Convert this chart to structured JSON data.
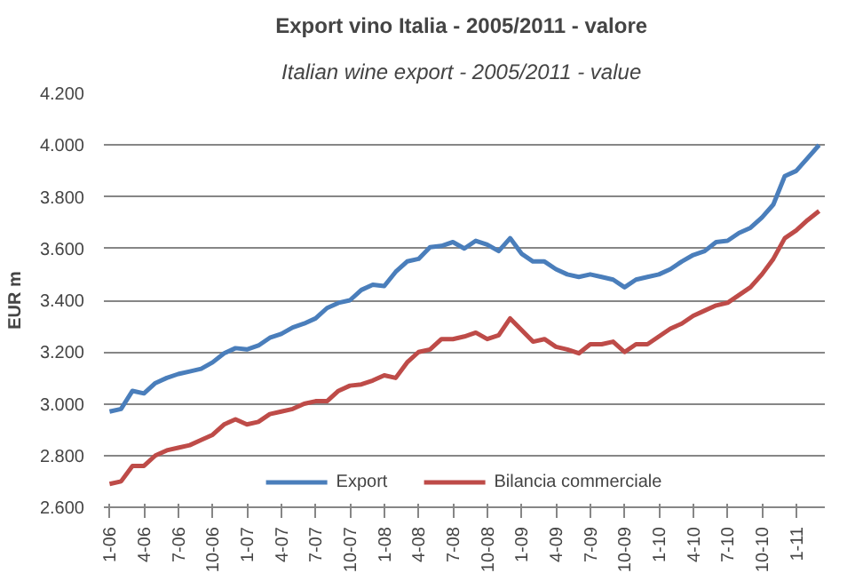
{
  "chart_data": {
    "type": "line",
    "title": "Export vino Italia - 2005/2011  - valore",
    "subtitle": "Italian wine export - 2005/2011  - value",
    "ylabel": "EUR m",
    "categories": [
      "1-06",
      null,
      null,
      "4-06",
      null,
      null,
      "7-06",
      null,
      null,
      "10-06",
      null,
      null,
      "1-07",
      null,
      null,
      "4-07",
      null,
      null,
      "7-07",
      null,
      null,
      "10-07",
      null,
      null,
      "1-08",
      null,
      null,
      "4-08",
      null,
      null,
      "7-08",
      null,
      null,
      "10-08",
      null,
      null,
      "1-09",
      null,
      null,
      "4-09",
      null,
      null,
      "7-09",
      null,
      null,
      "10-09",
      null,
      null,
      "1-10",
      null,
      null,
      "4-10",
      null,
      null,
      "7-10",
      null,
      null,
      "10-10",
      null,
      null,
      "1-11",
      null,
      null
    ],
    "series": [
      {
        "name": "Export",
        "color": "#4a7ebb",
        "values": [
          2970,
          2980,
          3050,
          3040,
          3080,
          3100,
          3115,
          3125,
          3135,
          3160,
          3195,
          3215,
          3210,
          3225,
          3255,
          3270,
          3295,
          3310,
          3330,
          3370,
          3390,
          3400,
          3440,
          3460,
          3455,
          3510,
          3550,
          3560,
          3605,
          3610,
          3625,
          3600,
          3630,
          3615,
          3590,
          3640,
          3580,
          3550,
          3550,
          3520,
          3500,
          3490,
          3500,
          3490,
          3480,
          3450,
          3480,
          3490,
          3500,
          3520,
          3550,
          3575,
          3590,
          3625,
          3630,
          3660,
          3680,
          3720,
          3770,
          3880,
          3900,
          3950,
          4000
        ]
      },
      {
        "name": "Bilancia commerciale",
        "color": "#be4b48",
        "values": [
          2690,
          2700,
          2760,
          2760,
          2800,
          2820,
          2830,
          2840,
          2860,
          2880,
          2920,
          2940,
          2920,
          2930,
          2960,
          2970,
          2980,
          3000,
          3010,
          3010,
          3050,
          3070,
          3075,
          3090,
          3110,
          3100,
          3160,
          3200,
          3210,
          3250,
          3250,
          3260,
          3275,
          3250,
          3265,
          3330,
          3285,
          3240,
          3250,
          3220,
          3210,
          3195,
          3230,
          3230,
          3240,
          3200,
          3230,
          3230,
          3260,
          3290,
          3310,
          3340,
          3360,
          3380,
          3390,
          3420,
          3450,
          3500,
          3560,
          3640,
          3670,
          3710,
          3745
        ]
      }
    ],
    "ylim": [
      2600,
      4200
    ],
    "yticks": [
      {
        "value": 2600,
        "label": "2.600"
      },
      {
        "value": 2800,
        "label": "2.800"
      },
      {
        "value": 3000,
        "label": "3.000"
      },
      {
        "value": 3200,
        "label": "3.200"
      },
      {
        "value": 3400,
        "label": "3.400"
      },
      {
        "value": 3600,
        "label": "3.600"
      },
      {
        "value": 3800,
        "label": "3.800"
      },
      {
        "value": 4000,
        "label": "4.000"
      },
      {
        "value": 4200,
        "label": "4.200"
      }
    ],
    "grid": "y",
    "legend": "bottom",
    "marker": "none",
    "line_style": "solid"
  }
}
